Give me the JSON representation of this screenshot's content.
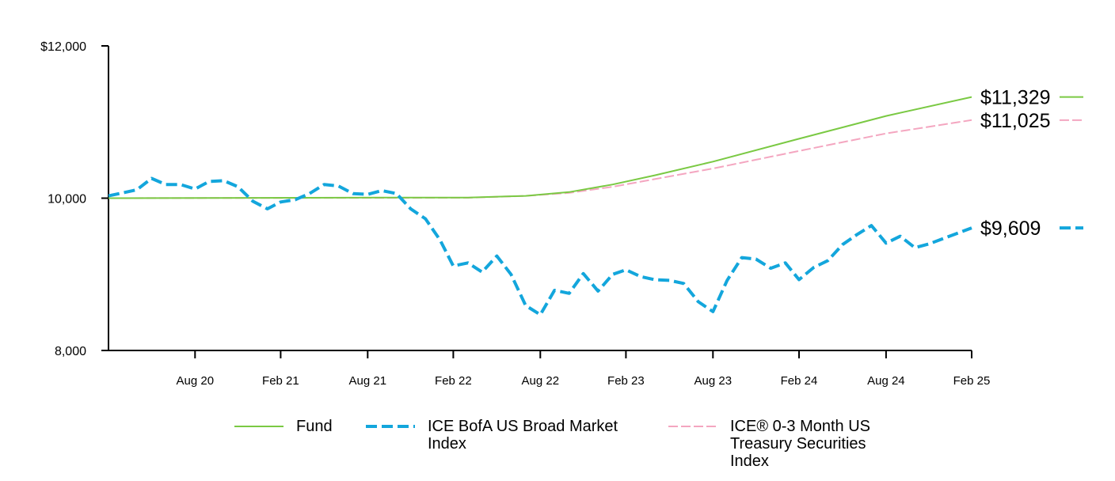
{
  "chart_data": {
    "type": "line",
    "y_axis": {
      "min": 8000,
      "max": 12000,
      "tick_values": [
        8000,
        10000,
        12000
      ],
      "tick_labels": [
        "8,000",
        "10,000",
        "$12,000"
      ]
    },
    "x_axis": {
      "start": "2020-03-01",
      "end": "2025-02-28",
      "tick_dates": [
        "2020-08-31",
        "2021-02-28",
        "2021-08-31",
        "2022-02-28",
        "2022-08-31",
        "2023-02-28",
        "2023-08-31",
        "2024-02-29",
        "2024-08-31",
        "2025-02-28"
      ],
      "tick_labels": [
        "Aug 20",
        "Feb 21",
        "Aug 21",
        "Feb 22",
        "Aug 22",
        "Feb 23",
        "Aug 23",
        "Feb 24",
        "Aug 24",
        "Feb 25"
      ]
    },
    "grid": false,
    "legend_position": "bottom",
    "series": [
      {
        "name": "Fund",
        "color": "#7ac943",
        "style": "solid",
        "end_label": "$11,329",
        "points": [
          [
            "2020-03-01",
            10000
          ],
          [
            "2020-09-30",
            10003
          ],
          [
            "2021-03-31",
            10005
          ],
          [
            "2021-09-30",
            10007
          ],
          [
            "2022-03-31",
            10008
          ],
          [
            "2022-07-31",
            10030
          ],
          [
            "2022-10-31",
            10080
          ],
          [
            "2023-01-31",
            10180
          ],
          [
            "2023-04-30",
            10300
          ],
          [
            "2023-08-31",
            10480
          ],
          [
            "2024-02-29",
            10780
          ],
          [
            "2024-08-31",
            11080
          ],
          [
            "2025-02-28",
            11329
          ]
        ]
      },
      {
        "name": "ICE BofA US Broad Market Index",
        "color": "#13a6dc",
        "style": "dashed",
        "end_label": "$9,609",
        "points": [
          [
            "2020-03-01",
            10030
          ],
          [
            "2020-04-30",
            10110
          ],
          [
            "2020-05-31",
            10260
          ],
          [
            "2020-06-30",
            10180
          ],
          [
            "2020-07-31",
            10180
          ],
          [
            "2020-08-31",
            10120
          ],
          [
            "2020-09-30",
            10220
          ],
          [
            "2020-10-31",
            10230
          ],
          [
            "2020-11-30",
            10150
          ],
          [
            "2020-12-31",
            9960
          ],
          [
            "2021-01-31",
            9860
          ],
          [
            "2021-02-28",
            9950
          ],
          [
            "2021-03-31",
            9980
          ],
          [
            "2021-04-30",
            10060
          ],
          [
            "2021-05-31",
            10180
          ],
          [
            "2021-06-30",
            10160
          ],
          [
            "2021-07-31",
            10060
          ],
          [
            "2021-08-31",
            10050
          ],
          [
            "2021-09-30",
            10100
          ],
          [
            "2021-10-31",
            10060
          ],
          [
            "2021-11-30",
            9860
          ],
          [
            "2021-12-31",
            9730
          ],
          [
            "2022-01-31",
            9450
          ],
          [
            "2022-02-28",
            9110
          ],
          [
            "2022-03-31",
            9150
          ],
          [
            "2022-04-30",
            9030
          ],
          [
            "2022-05-31",
            9240
          ],
          [
            "2022-06-30",
            9000
          ],
          [
            "2022-07-31",
            8590
          ],
          [
            "2022-08-31",
            8470
          ],
          [
            "2022-09-30",
            8790
          ],
          [
            "2022-10-31",
            8750
          ],
          [
            "2022-11-30",
            9010
          ],
          [
            "2022-12-31",
            8780
          ],
          [
            "2023-01-31",
            9000
          ],
          [
            "2023-02-28",
            9060
          ],
          [
            "2023-03-31",
            8970
          ],
          [
            "2023-04-30",
            8930
          ],
          [
            "2023-05-31",
            8920
          ],
          [
            "2023-06-30",
            8880
          ],
          [
            "2023-07-31",
            8640
          ],
          [
            "2023-08-31",
            8510
          ],
          [
            "2023-09-30",
            8920
          ],
          [
            "2023-10-31",
            9220
          ],
          [
            "2023-11-30",
            9200
          ],
          [
            "2023-12-31",
            9080
          ],
          [
            "2024-01-31",
            9150
          ],
          [
            "2024-02-29",
            8930
          ],
          [
            "2024-03-31",
            9090
          ],
          [
            "2024-04-30",
            9180
          ],
          [
            "2024-05-31",
            9390
          ],
          [
            "2024-06-30",
            9520
          ],
          [
            "2024-07-31",
            9640
          ],
          [
            "2024-08-31",
            9410
          ],
          [
            "2024-09-30",
            9500
          ],
          [
            "2024-10-31",
            9350
          ],
          [
            "2024-11-30",
            9400
          ],
          [
            "2025-02-28",
            9609
          ]
        ]
      },
      {
        "name": "ICE® 0-3 Month US Treasury Securities Index",
        "color": "#f4a6c0",
        "style": "dashed",
        "end_label": "$11,025",
        "points": [
          [
            "2020-03-01",
            10000
          ],
          [
            "2020-09-30",
            10002
          ],
          [
            "2021-03-31",
            10003
          ],
          [
            "2021-09-30",
            10004
          ],
          [
            "2022-03-31",
            10005
          ],
          [
            "2022-07-31",
            10030
          ],
          [
            "2022-10-31",
            10070
          ],
          [
            "2023-01-31",
            10150
          ],
          [
            "2023-04-30",
            10250
          ],
          [
            "2023-08-31",
            10390
          ],
          [
            "2024-02-29",
            10620
          ],
          [
            "2024-08-31",
            10850
          ],
          [
            "2025-02-28",
            11025
          ]
        ]
      }
    ]
  },
  "legend": [
    {
      "label": "Fund"
    },
    {
      "label": "ICE BofA US Broad Market\nIndex"
    },
    {
      "label": "ICE® 0-3 Month US\nTreasury Securities\nIndex"
    }
  ]
}
